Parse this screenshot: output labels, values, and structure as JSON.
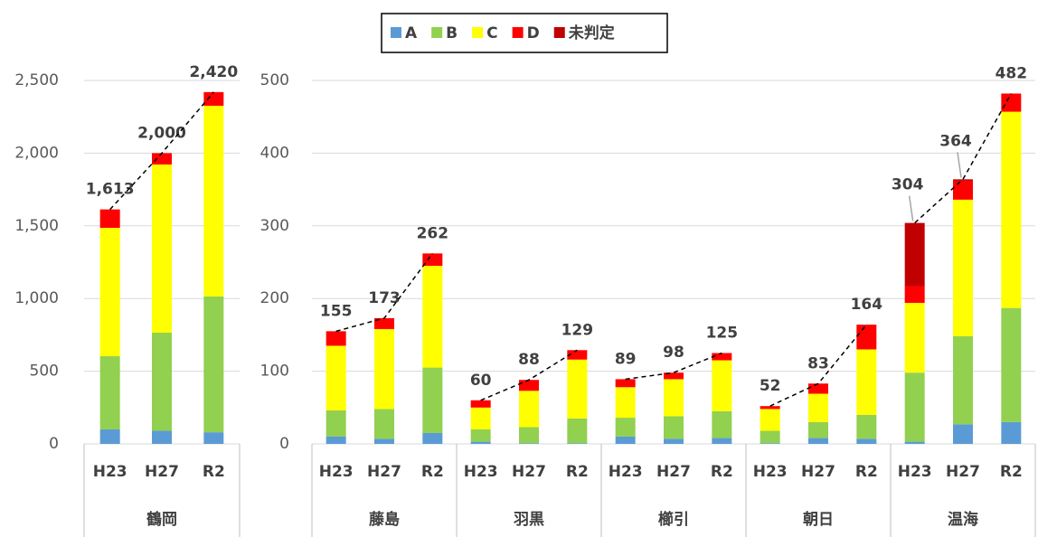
{
  "chart_data": [
    {
      "type": "bar",
      "stacked": true,
      "groups": [
        {
          "name": "鶴岡",
          "categories": [
            "H23",
            "H27",
            "R2"
          ]
        }
      ],
      "series": [
        {
          "color": "#5b9bd5",
          "values": [
            100,
            90,
            80
          ]
        },
        {
          "color": "#92d050",
          "values": [
            503,
            675,
            934
          ]
        },
        {
          "color": "#ffff00",
          "values": [
            883,
            1157,
            1312
          ]
        },
        {
          "color": "#ff0000",
          "values": [
            127,
            78,
            94
          ]
        },
        {
          "color": "#c00000",
          "values": [
            0,
            0,
            0
          ]
        }
      ],
      "totals": [
        1613,
        2000,
        2420
      ],
      "value_labels": [
        "1,613",
        "2,000",
        "2,420"
      ],
      "ylim": [
        0,
        2500
      ],
      "yticks": [
        0,
        500,
        {
          "value": 1000,
          "label": "1,000"
        },
        {
          "value": 1500,
          "label": "1,500"
        },
        {
          "value": 2000,
          "label": "2,000"
        },
        {
          "value": 2500,
          "label": "2,500"
        }
      ],
      "grid": true
    },
    {
      "type": "bar",
      "stacked": true,
      "groups": [
        {
          "name": "藤島",
          "categories": [
            "H23",
            "H27",
            "R2"
          ]
        },
        {
          "name": "羽黒",
          "categories": [
            "H23",
            "H27",
            "R2"
          ]
        },
        {
          "name": "櫛引",
          "categories": [
            "H23",
            "H27",
            "R2"
          ]
        },
        {
          "name": "朝日",
          "categories": [
            "H23",
            "H27",
            "R2"
          ]
        },
        {
          "name": "温海",
          "categories": [
            "H23",
            "H27",
            "R2"
          ]
        }
      ],
      "series": [
        {
          "name": "A",
          "color": "#5b9bd5",
          "values": [
            10,
            7,
            15,
            3,
            1,
            1,
            10,
            7,
            8,
            1,
            8,
            7,
            3,
            27,
            30
          ]
        },
        {
          "name": "B",
          "color": "#92d050",
          "values": [
            36,
            41,
            90,
            17,
            22,
            34,
            26,
            31,
            37,
            17,
            22,
            33,
            95,
            121,
            157
          ]
        },
        {
          "name": "C",
          "color": "#ffff00",
          "values": [
            89,
            110,
            140,
            30,
            50,
            81,
            42,
            51,
            70,
            30,
            39,
            90,
            96,
            188,
            270
          ]
        },
        {
          "name": "D",
          "color": "#ff0000",
          "values": [
            20,
            15,
            17,
            10,
            15,
            13,
            11,
            9,
            10,
            4,
            14,
            34,
            23,
            26,
            25
          ]
        },
        {
          "name": "未判定",
          "color": "#c00000",
          "values": [
            0,
            0,
            0,
            0,
            0,
            0,
            0,
            0,
            0,
            0,
            0,
            0,
            87,
            2,
            0
          ]
        }
      ],
      "totals": [
        155,
        173,
        262,
        60,
        88,
        129,
        89,
        98,
        125,
        52,
        83,
        164,
        304,
        364,
        482
      ],
      "ylim": [
        0,
        500
      ],
      "yticks": [
        0,
        100,
        200,
        300,
        400,
        500
      ],
      "grid": true,
      "legend": "top"
    }
  ]
}
